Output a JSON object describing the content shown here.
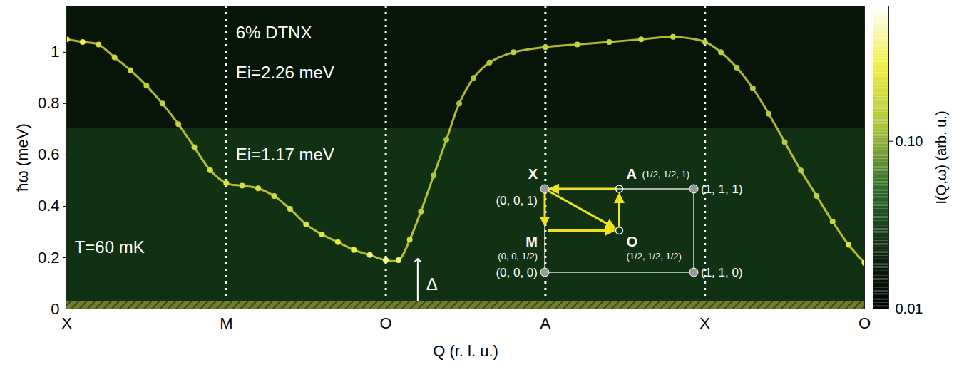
{
  "chart_data": {
    "type": "line",
    "xlabel": "Q (r. l. u.)",
    "ylabel": "ħω (meV)",
    "xlim": [
      0,
      5
    ],
    "xticks": [
      {
        "value": 0,
        "label": "X"
      },
      {
        "value": 1,
        "label": "M"
      },
      {
        "value": 2,
        "label": "O"
      },
      {
        "value": 3,
        "label": "A"
      },
      {
        "value": 4,
        "label": "X"
      },
      {
        "value": 5,
        "label": "O"
      }
    ],
    "ylim": [
      0,
      1.18
    ],
    "yticks": [
      0,
      0.2,
      0.4,
      0.6,
      0.8,
      1
    ],
    "color": "#dde23a",
    "marker": "circle",
    "x": [
      0,
      0.1,
      0.2,
      0.3,
      0.4,
      0.5,
      0.6,
      0.7,
      0.8,
      0.9,
      1.0,
      1.1,
      1.2,
      1.3,
      1.4,
      1.5,
      1.6,
      1.7,
      1.8,
      1.9,
      2.0,
      2.08,
      2.15,
      2.22,
      2.3,
      2.38,
      2.46,
      2.55,
      2.65,
      2.8,
      3.0,
      3.2,
      3.4,
      3.6,
      3.8,
      4.0,
      4.1,
      4.2,
      4.3,
      4.4,
      4.5,
      4.6,
      4.7,
      4.8,
      4.9,
      5.0
    ],
    "values": [
      1.05,
      1.04,
      1.03,
      0.98,
      0.93,
      0.87,
      0.8,
      0.72,
      0.63,
      0.54,
      0.49,
      0.48,
      0.47,
      0.44,
      0.39,
      0.33,
      0.29,
      0.26,
      0.23,
      0.21,
      0.19,
      0.19,
      0.27,
      0.38,
      0.52,
      0.66,
      0.8,
      0.9,
      0.96,
      1.0,
      1.02,
      1.03,
      1.04,
      1.05,
      1.06,
      1.04,
      1.0,
      0.94,
      0.86,
      0.76,
      0.65,
      0.54,
      0.44,
      0.34,
      0.25,
      0.18
    ],
    "intensity": [
      0.3,
      0.3,
      0.2,
      0.18,
      0.18,
      0.16,
      0.16,
      0.16,
      0.18,
      0.2,
      0.22,
      0.2,
      0.2,
      0.2,
      0.2,
      0.22,
      0.22,
      0.25,
      0.28,
      0.35,
      0.4,
      0.35,
      0.2,
      0.15,
      0.13,
      0.12,
      0.12,
      0.13,
      0.14,
      0.15,
      0.16,
      0.17,
      0.18,
      0.18,
      0.18,
      0.16,
      0.15,
      0.14,
      0.14,
      0.14,
      0.14,
      0.15,
      0.16,
      0.18,
      0.22,
      0.3
    ],
    "regions": [
      {
        "ylim": [
          0,
          0.7
        ],
        "intensity": 0.025
      },
      {
        "ylim": [
          0.7,
          1.18
        ],
        "intensity": 0.015
      }
    ],
    "elastic_mask": {
      "ylim": [
        0,
        0.03
      ]
    },
    "colorbar": {
      "label": "I(Q,ω) (arb. u.)",
      "lim": [
        0.01,
        0.64
      ],
      "ticks": [
        0.01,
        {
          "value": 0.1,
          "label": "0.10"
        }
      ],
      "log": true
    },
    "annotations": [
      {
        "text": "6% DTNX",
        "x": 1.06,
        "y": 1.075
      },
      {
        "text": "Ei=2.26 meV",
        "x": 1.06,
        "y": 0.92
      },
      {
        "text": "Ei=1.17 meV",
        "x": 1.06,
        "y": 0.6
      },
      {
        "text": "T=60 mK",
        "x": 0.05,
        "y": 0.24
      }
    ],
    "gap_arrow": {
      "text": "Δ",
      "x": 2.2,
      "y1": 0,
      "y2": 0.19
    },
    "inset": {
      "points": [
        {
          "name": "X",
          "label": "(0, 0, 1)",
          "h": 0,
          "l": 1
        },
        {
          "name": "A",
          "label": "(1/2, 1/2, 1)",
          "h": 0.5,
          "l": 1
        },
        {
          "name": "M",
          "label": "(0, 0, 1/2)",
          "h": 0,
          "l": 0.5
        },
        {
          "name": "O",
          "label": "(1/2, 1/2, 1/2)",
          "h": 0.5,
          "l": 0.5
        },
        {
          "label": "(0, 0, 0)",
          "h": 0,
          "l": 0
        },
        {
          "label": "(1, 1, 0)",
          "h": 1,
          "l": 0
        },
        {
          "label": "(1, 1, 1)",
          "h": 1,
          "l": 1
        }
      ],
      "path": [
        "X",
        "M",
        "O",
        "A",
        "X",
        "O"
      ]
    }
  }
}
